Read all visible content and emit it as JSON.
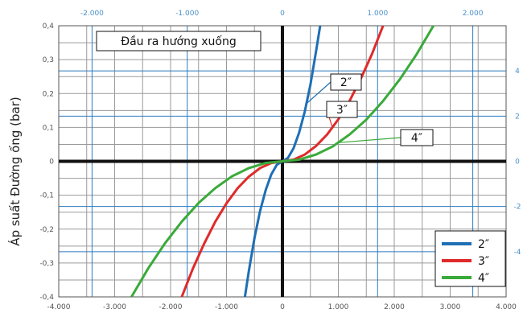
{
  "chart_data": {
    "type": "line",
    "title": "Đầu ra hướng xuống",
    "ylabel": "Áp suất Đường ống (bar)",
    "xlim": [
      -4000,
      4000
    ],
    "ylim": [
      -0.4,
      0.4
    ],
    "x_ticks": [
      "-4.000",
      "-3.000",
      "-2.000",
      "-1.000",
      "0",
      "1.000",
      "2.000",
      "3.000",
      "4.000"
    ],
    "y_ticks": [
      "0,4",
      "0,3",
      "0,2",
      "0,1",
      "0",
      "-0,1",
      "-0,2",
      "-0,3",
      "-0,4"
    ],
    "top_axis_ticks": [
      {
        "value": -2000,
        "label": "-2.000"
      },
      {
        "value": -1000,
        "label": "-1.000"
      },
      {
        "value": 0,
        "label": "0"
      },
      {
        "value": 1000,
        "label": "1.000"
      },
      {
        "value": 2000,
        "label": "2.000"
      }
    ],
    "right_axis_ticks": [
      {
        "value": 4,
        "label": "4"
      },
      {
        "value": 2,
        "label": "2"
      },
      {
        "value": 0,
        "label": "0"
      },
      {
        "value": -2,
        "label": "-2"
      },
      {
        "value": -4,
        "label": "-4"
      }
    ],
    "grid": true,
    "legend_position": "bottom-right",
    "series": [
      {
        "name": "2″",
        "color": "#1f6fb5",
        "x": [
          -670,
          -600,
          -500,
          -400,
          -300,
          -200,
          -100,
          0,
          100,
          200,
          300,
          400,
          500,
          600,
          700,
          770
        ],
        "y": [
          -0.4,
          -0.323,
          -0.226,
          -0.147,
          -0.085,
          -0.039,
          -0.01,
          0,
          0.01,
          0.039,
          0.085,
          0.147,
          0.226,
          0.323,
          0.426,
          0.48
        ]
      },
      {
        "name": "3″",
        "color": "#e02a2a",
        "x": [
          -1800,
          -1600,
          -1400,
          -1200,
          -1000,
          -800,
          -600,
          -400,
          -200,
          0,
          200,
          400,
          600,
          800,
          1000,
          1200,
          1400,
          1600,
          1800,
          2000,
          2200,
          2300
        ],
        "y": [
          -0.4,
          -0.316,
          -0.243,
          -0.178,
          -0.124,
          -0.079,
          -0.045,
          -0.02,
          -0.005,
          0,
          0.005,
          0.02,
          0.045,
          0.079,
          0.124,
          0.178,
          0.243,
          0.316,
          0.4,
          0.494,
          0.598,
          0.65
        ]
      },
      {
        "name": "4″",
        "color": "#3aaa3a",
        "x": [
          -2700,
          -2400,
          -2100,
          -1800,
          -1500,
          -1200,
          -900,
          -600,
          -300,
          0,
          300,
          600,
          900,
          1200,
          1500,
          1800,
          2100,
          2400,
          2700,
          3000,
          3200
        ],
        "y": [
          -0.4,
          -0.316,
          -0.242,
          -0.178,
          -0.123,
          -0.079,
          -0.044,
          -0.02,
          -0.005,
          0,
          0.005,
          0.02,
          0.044,
          0.079,
          0.123,
          0.178,
          0.242,
          0.316,
          0.4,
          0.494,
          0.562
        ]
      }
    ],
    "callouts": [
      {
        "series": "2″",
        "label": "2″"
      },
      {
        "series": "3″",
        "label": "3″"
      },
      {
        "series": "4″",
        "label": "4″"
      }
    ],
    "legend": [
      "2″",
      "3″",
      "4″"
    ]
  }
}
